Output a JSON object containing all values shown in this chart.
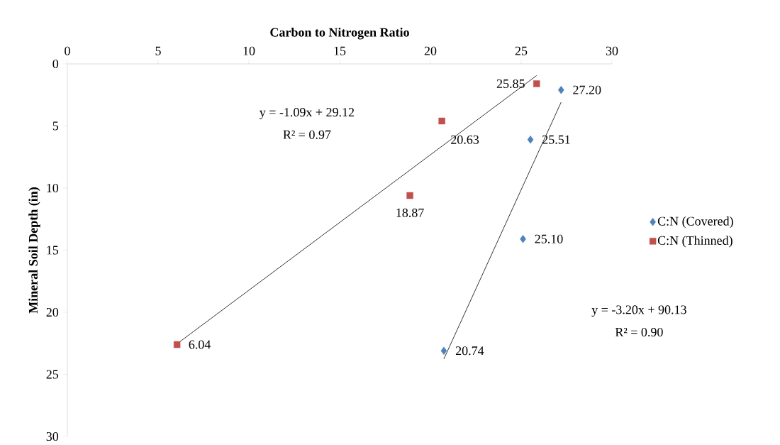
{
  "chart_data": {
    "type": "scatter",
    "xlabel": "Carbon to Nitrogen Ratio",
    "ylabel": "Mineral Soil Depth (in)",
    "xlim": [
      0,
      30
    ],
    "xticks": [
      0,
      5,
      10,
      15,
      20,
      25,
      30
    ],
    "ylim": [
      30,
      0
    ],
    "yticks": [
      0,
      5,
      10,
      15,
      20,
      25,
      30
    ],
    "grid": false,
    "legend": "right",
    "series": [
      {
        "name": "C:N (Covered)",
        "color": "#4f81bd",
        "marker": "diamond",
        "x": [
          27.2,
          25.51,
          25.1,
          20.74
        ],
        "values": [
          2.1,
          6.1,
          14.1,
          23.1
        ]
      },
      {
        "name": "C:N (Thinned)",
        "color": "#c0504d",
        "marker": "square",
        "x": [
          25.85,
          20.63,
          18.87,
          6.04
        ],
        "values": [
          1.6,
          4.6,
          10.6,
          22.6
        ]
      },
      {
        "type": "line",
        "color": "#000000",
        "marker": "none",
        "x": [
          20.74,
          27.2
        ],
        "values": [
          23.76,
          3.09
        ]
      },
      {
        "type": "line",
        "color": "#000000",
        "marker": "none",
        "x": [
          6.04,
          25.85
        ],
        "values": [
          22.54,
          0.94
        ]
      }
    ],
    "annotations": [
      "y = -1.09x + 29.12",
      "R² = 0.97",
      "y = -3.20x + 90.13",
      "R² = 0.90",
      {
        "text": "27.20",
        "x": 27.2,
        "y": 2.1
      },
      {
        "text": "25.51",
        "x": 25.51,
        "y": 6.1
      },
      {
        "text": "25.10",
        "x": 25.1,
        "y": 14.1
      },
      {
        "text": "20.74",
        "x": 20.74,
        "y": 23.1
      },
      {
        "text": "25.85",
        "x": 25.85,
        "y": 1.6
      },
      {
        "text": "20.63",
        "x": 20.63,
        "y": 4.6
      },
      {
        "text": "18.87",
        "x": 18.87,
        "y": 10.6
      },
      {
        "text": "6.04",
        "x": 6.04,
        "y": 22.6
      }
    ]
  }
}
